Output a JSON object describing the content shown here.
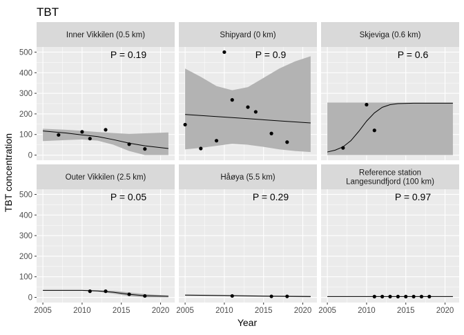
{
  "chart_data": {
    "type": "scatter",
    "title": "TBT",
    "xlabel": "Year",
    "ylabel": "TBT concentration",
    "xlim": [
      2004.2,
      2021.8
    ],
    "ylim": [
      -25,
      525
    ],
    "x_ticks": [
      2005,
      2010,
      2015,
      2020
    ],
    "y_ticks": [
      0,
      100,
      200,
      300,
      400,
      500
    ],
    "grid": true,
    "facets": [
      {
        "strip": [
          "Inner Vikkilen (0.5 km)"
        ],
        "p_label": "P =  0.19",
        "points": [
          [
            2007,
            98
          ],
          [
            2010,
            113
          ],
          [
            2011,
            80
          ],
          [
            2013,
            123
          ],
          [
            2016,
            53
          ],
          [
            2018,
            30
          ]
        ],
        "fit": [
          [
            2005,
            117
          ],
          [
            2008,
            107
          ],
          [
            2010,
            98
          ],
          [
            2012,
            90
          ],
          [
            2014,
            75
          ],
          [
            2016,
            58
          ],
          [
            2018,
            45
          ],
          [
            2021,
            32
          ]
        ],
        "band_upper": [
          [
            2005,
            128
          ],
          [
            2008,
            123
          ],
          [
            2010,
            118
          ],
          [
            2012,
            112
          ],
          [
            2014,
            107
          ],
          [
            2016,
            103
          ],
          [
            2018,
            106
          ],
          [
            2021,
            110
          ]
        ],
        "band_lower": [
          [
            2005,
            68
          ],
          [
            2008,
            73
          ],
          [
            2010,
            76
          ],
          [
            2012,
            70
          ],
          [
            2014,
            50
          ],
          [
            2016,
            20
          ],
          [
            2018,
            0
          ],
          [
            2021,
            0
          ]
        ]
      },
      {
        "strip": [
          "Shipyard (0 km)"
        ],
        "p_label": "P =  0.9",
        "points": [
          [
            2005,
            148
          ],
          [
            2007,
            32
          ],
          [
            2009,
            70
          ],
          [
            2010,
            500
          ],
          [
            2011,
            268
          ],
          [
            2013,
            233
          ],
          [
            2014,
            210
          ],
          [
            2016,
            105
          ],
          [
            2018,
            63
          ]
        ],
        "fit": [
          [
            2005,
            197
          ],
          [
            2009,
            187
          ],
          [
            2013,
            177
          ],
          [
            2017,
            166
          ],
          [
            2021,
            156
          ]
        ],
        "band_upper": [
          [
            2005,
            420
          ],
          [
            2007,
            380
          ],
          [
            2009,
            335
          ],
          [
            2011,
            315
          ],
          [
            2013,
            330
          ],
          [
            2015,
            375
          ],
          [
            2017,
            420
          ],
          [
            2019,
            455
          ],
          [
            2021,
            480
          ]
        ],
        "band_lower": [
          [
            2005,
            28
          ],
          [
            2007,
            35
          ],
          [
            2009,
            45
          ],
          [
            2011,
            55
          ],
          [
            2013,
            50
          ],
          [
            2015,
            40
          ],
          [
            2017,
            28
          ],
          [
            2019,
            20
          ],
          [
            2021,
            15
          ]
        ]
      },
      {
        "strip": [
          "Skjeviga (0.6 km)"
        ],
        "p_label": "P =  0.6",
        "points": [
          [
            2007,
            35
          ],
          [
            2010,
            245
          ],
          [
            2011,
            120
          ]
        ],
        "fit": [
          [
            2005,
            15
          ],
          [
            2006,
            24
          ],
          [
            2007,
            40
          ],
          [
            2008,
            70
          ],
          [
            2009,
            115
          ],
          [
            2010,
            165
          ],
          [
            2011,
            205
          ],
          [
            2012,
            232
          ],
          [
            2013,
            245
          ],
          [
            2014,
            250
          ],
          [
            2016,
            252
          ],
          [
            2021,
            252
          ]
        ],
        "band_upper": [
          [
            2005,
            255
          ],
          [
            2021,
            255
          ]
        ],
        "band_lower": [
          [
            2005,
            0
          ],
          [
            2021,
            0
          ]
        ]
      },
      {
        "strip": [
          "Outer Vikkilen (2.5 km)"
        ],
        "p_label": "P =  0.05",
        "points": [
          [
            2011,
            30
          ],
          [
            2013,
            30
          ],
          [
            2016,
            15
          ],
          [
            2018,
            7
          ]
        ],
        "fit": [
          [
            2005,
            34
          ],
          [
            2010,
            34
          ],
          [
            2012,
            31
          ],
          [
            2014,
            25
          ],
          [
            2016,
            15
          ],
          [
            2018,
            8
          ],
          [
            2021,
            5
          ]
        ],
        "band_upper": [
          [
            2005,
            36
          ],
          [
            2010,
            36
          ],
          [
            2012,
            35
          ],
          [
            2014,
            32
          ],
          [
            2016,
            24
          ],
          [
            2018,
            16
          ],
          [
            2021,
            10
          ]
        ],
        "band_lower": [
          [
            2005,
            32
          ],
          [
            2010,
            32
          ],
          [
            2012,
            28
          ],
          [
            2014,
            18
          ],
          [
            2016,
            6
          ],
          [
            2018,
            0
          ],
          [
            2021,
            0
          ]
        ]
      },
      {
        "strip": [
          "Håøya (5.5 km)"
        ],
        "p_label": "P =  0.29",
        "points": [
          [
            2011,
            7
          ],
          [
            2016,
            5
          ],
          [
            2018,
            5
          ]
        ],
        "fit": [
          [
            2005,
            11
          ],
          [
            2010,
            9
          ],
          [
            2015,
            6
          ],
          [
            2021,
            4
          ]
        ],
        "band_upper": [
          [
            2005,
            14
          ],
          [
            2010,
            12
          ],
          [
            2015,
            9
          ],
          [
            2021,
            8
          ]
        ],
        "band_lower": [
          [
            2005,
            8
          ],
          [
            2010,
            6
          ],
          [
            2015,
            3
          ],
          [
            2021,
            1
          ]
        ]
      },
      {
        "strip": [
          "Reference station",
          "Langesundfjord (100 km)"
        ],
        "p_label": "P =  0.97",
        "points": [
          [
            2011,
            4
          ],
          [
            2012,
            4
          ],
          [
            2013,
            4
          ],
          [
            2014,
            4
          ],
          [
            2015,
            4
          ],
          [
            2016,
            4
          ],
          [
            2017,
            4
          ],
          [
            2018,
            4
          ]
        ],
        "fit": [
          [
            2005,
            4
          ],
          [
            2021,
            4
          ]
        ],
        "band_upper": [
          [
            2005,
            6
          ],
          [
            2021,
            6
          ]
        ],
        "band_lower": [
          [
            2005,
            2
          ],
          [
            2021,
            2
          ]
        ]
      }
    ]
  },
  "colors": {
    "panel_bg": "#ebebeb",
    "strip_bg": "#d9d9d9",
    "grid": "#ffffff",
    "band": "#b3b3b3",
    "line": "#000000",
    "point": "#000000",
    "text": "#1a1a1a",
    "tick_text": "#4d4d4d"
  }
}
